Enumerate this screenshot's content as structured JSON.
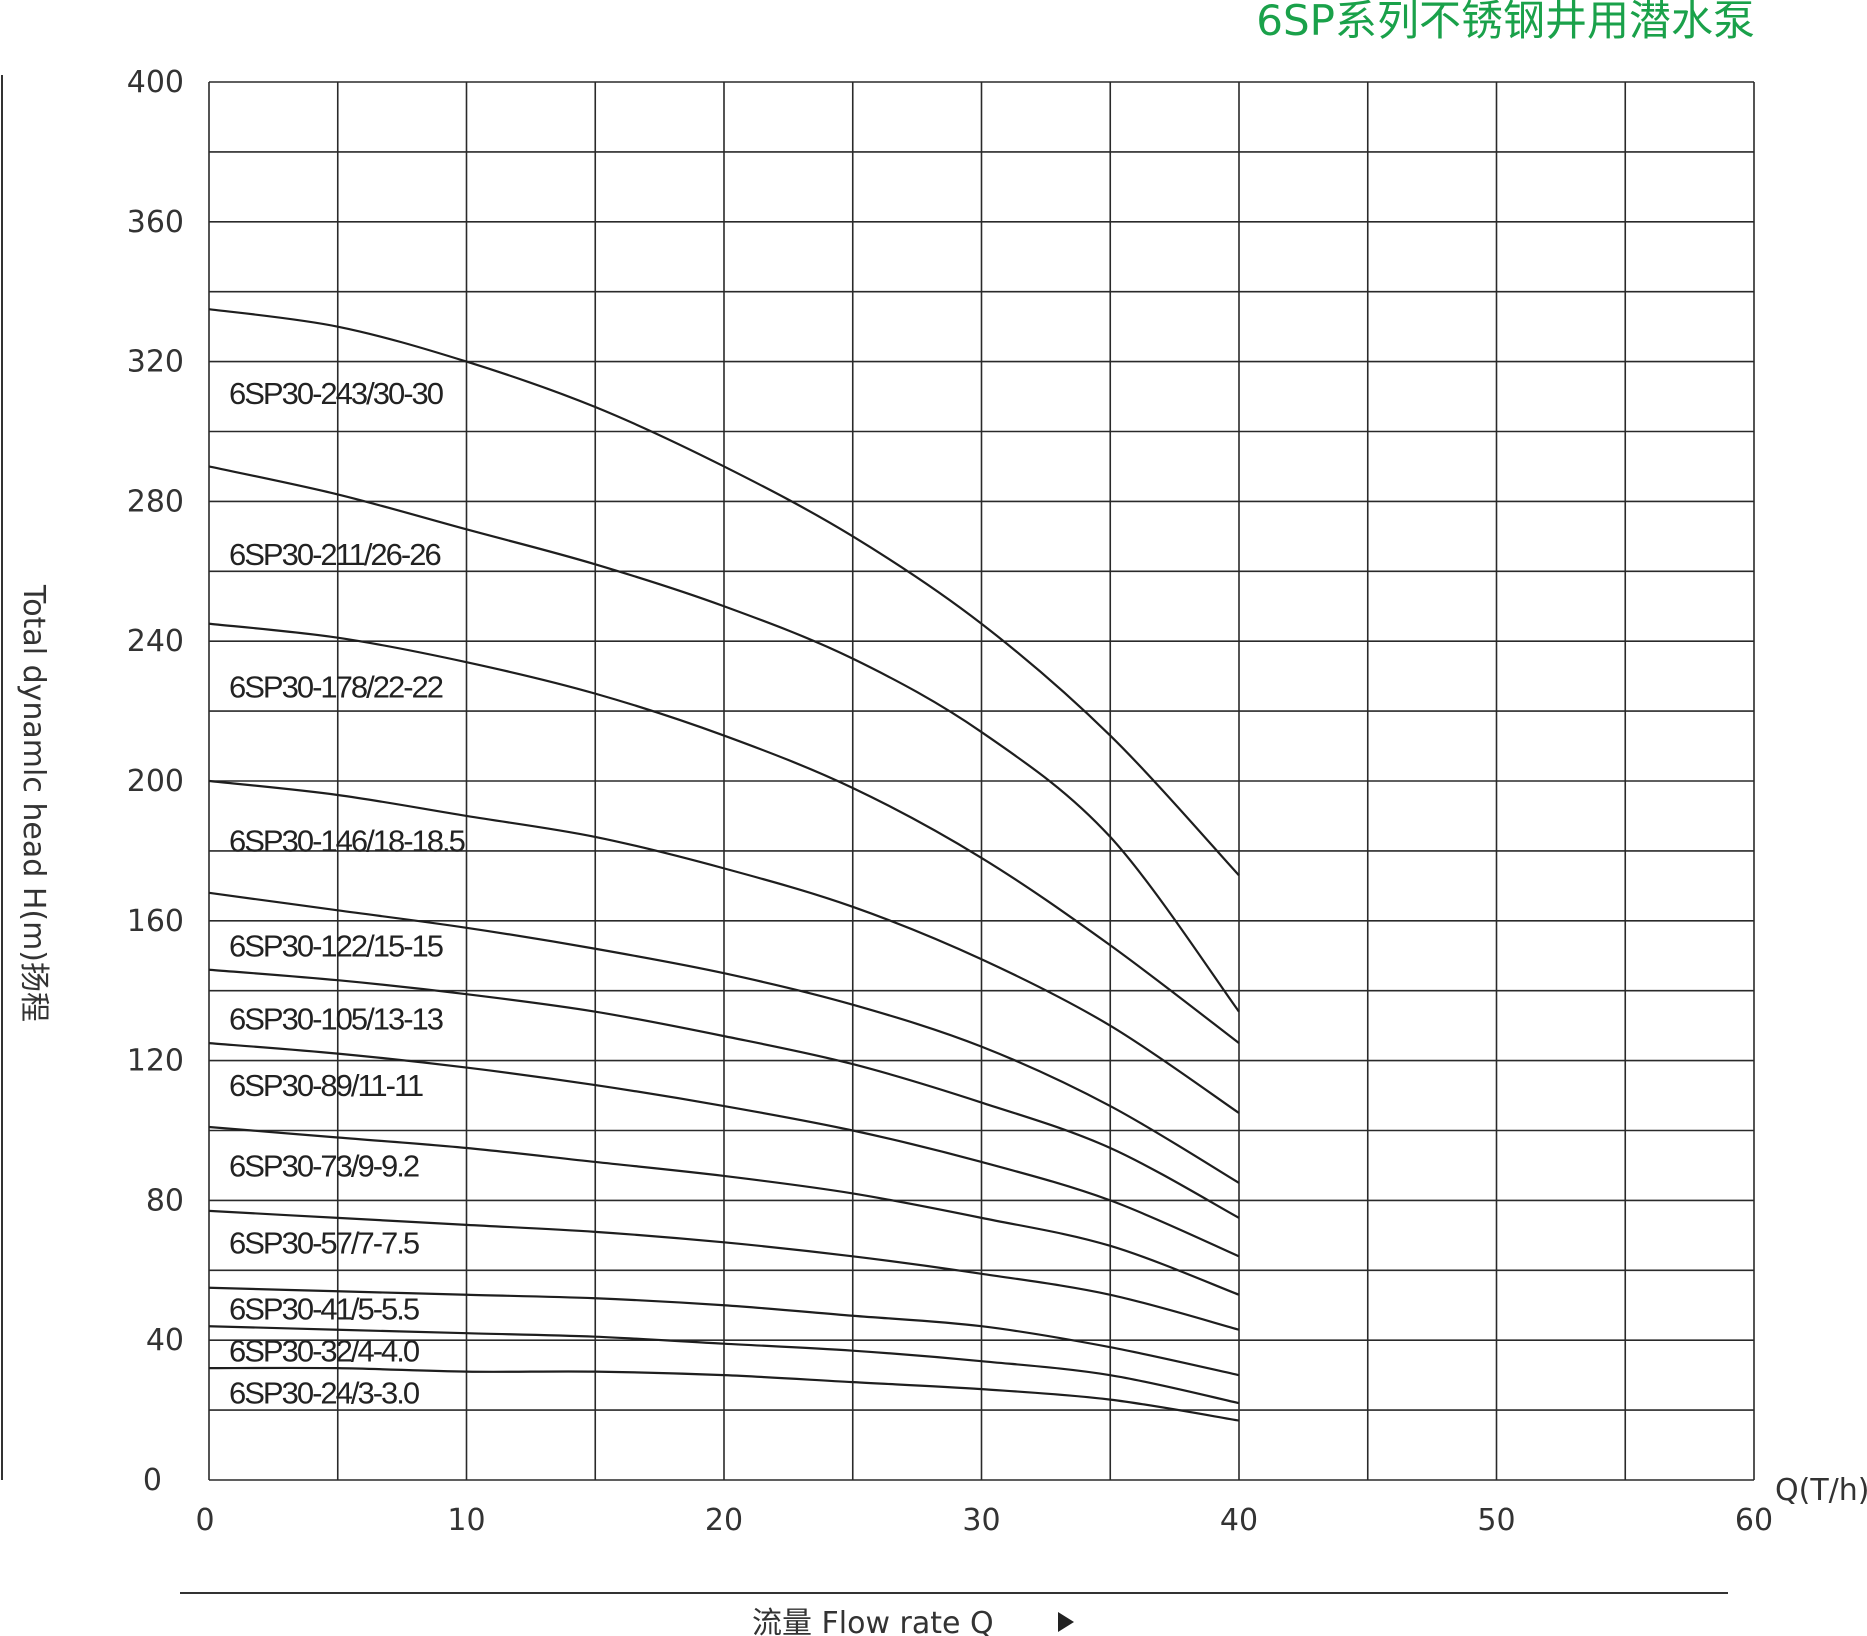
{
  "chart_data": {
    "type": "line",
    "title": "6SP系列不锈钢井用潜水泵",
    "xlabel_unit": "Q(T/h)",
    "xlabel": "流量   Flow rate Q",
    "ylabel": "Total dynamlc head H(m)扬程",
    "xlim": [
      0,
      60
    ],
    "ylim": [
      0,
      400
    ],
    "x_ticks": [
      "0",
      "10",
      "20",
      "30",
      "40",
      "50",
      "60"
    ],
    "y_ticks": [
      "0",
      "40",
      "80",
      "120",
      "160",
      "200",
      "240",
      "280",
      "320",
      "360",
      "400"
    ],
    "grid": true,
    "x": [
      0,
      5,
      10,
      15,
      20,
      25,
      30,
      35,
      40
    ],
    "series": [
      {
        "name": "6SP30-243/30-30",
        "values": [
          335,
          330,
          320,
          307,
          290,
          270,
          245,
          213,
          173
        ]
      },
      {
        "name": "6SP30-211/26-26",
        "values": [
          290,
          282,
          272,
          262,
          250,
          235,
          214,
          184,
          134
        ]
      },
      {
        "name": "6SP30-178/22-22",
        "values": [
          245,
          241,
          234,
          225,
          213,
          198,
          178,
          153,
          125
        ]
      },
      {
        "name": "6SP30-146/18-18.5",
        "values": [
          200,
          196,
          190,
          184,
          175,
          164,
          149,
          130,
          105
        ]
      },
      {
        "name": "6SP30-122/15-15",
        "values": [
          168,
          163,
          158,
          152,
          145,
          136,
          124,
          107,
          85
        ]
      },
      {
        "name": "6SP30-105/13-13",
        "values": [
          146,
          143,
          139,
          134,
          127,
          119,
          108,
          95,
          75
        ]
      },
      {
        "name": "6SP30-89/11-11",
        "values": [
          125,
          122,
          118,
          113,
          107,
          100,
          91,
          80,
          64
        ]
      },
      {
        "name": "6SP30-73/9-9.2",
        "values": [
          101,
          98,
          95,
          91,
          87,
          82,
          75,
          67,
          53
        ]
      },
      {
        "name": "6SP30-57/7-7.5",
        "values": [
          77,
          75,
          73,
          71,
          68,
          64,
          59,
          53,
          43
        ]
      },
      {
        "name": "6SP30-41/5-5.5",
        "values": [
          55,
          54,
          53,
          52,
          50,
          47,
          44,
          38,
          30
        ]
      },
      {
        "name": "6SP30-32/4-4.0",
        "values": [
          44,
          43,
          42,
          41,
          39,
          37,
          34,
          30,
          22
        ]
      },
      {
        "name": "6SP30-24/3-3.0",
        "values": [
          32,
          32,
          31,
          31,
          30,
          28,
          26,
          23,
          17
        ]
      }
    ],
    "label_y_values": [
      311,
      265,
      227,
      183,
      153,
      132,
      113,
      90,
      68,
      49,
      37,
      25
    ]
  }
}
